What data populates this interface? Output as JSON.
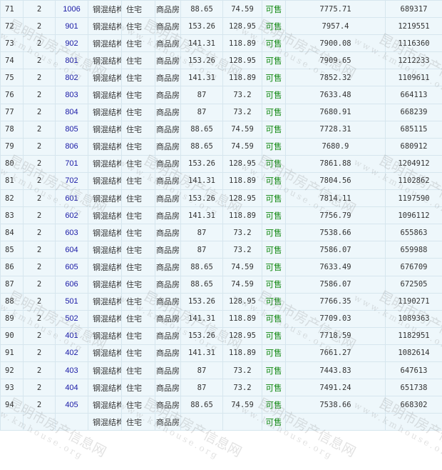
{
  "rows": [
    [
      "71",
      "2",
      "1006",
      "钢混结构",
      "住宅",
      "商品房",
      "88.65",
      "74.59",
      "可售",
      "7775.71",
      "689317"
    ],
    [
      "72",
      "2",
      "901",
      "钢混结构",
      "住宅",
      "商品房",
      "153.26",
      "128.95",
      "可售",
      "7957.4",
      "1219551"
    ],
    [
      "73",
      "2",
      "902",
      "钢混结构",
      "住宅",
      "商品房",
      "141.31",
      "118.89",
      "可售",
      "7900.08",
      "1116360"
    ],
    [
      "74",
      "2",
      "801",
      "钢混结构",
      "住宅",
      "商品房",
      "153.26",
      "128.95",
      "可售",
      "7909.65",
      "1212233"
    ],
    [
      "75",
      "2",
      "802",
      "钢混结构",
      "住宅",
      "商品房",
      "141.31",
      "118.89",
      "可售",
      "7852.32",
      "1109611"
    ],
    [
      "76",
      "2",
      "803",
      "钢混结构",
      "住宅",
      "商品房",
      "87",
      "73.2",
      "可售",
      "7633.48",
      "664113"
    ],
    [
      "77",
      "2",
      "804",
      "钢混结构",
      "住宅",
      "商品房",
      "87",
      "73.2",
      "可售",
      "7680.91",
      "668239"
    ],
    [
      "78",
      "2",
      "805",
      "钢混结构",
      "住宅",
      "商品房",
      "88.65",
      "74.59",
      "可售",
      "7728.31",
      "685115"
    ],
    [
      "79",
      "2",
      "806",
      "钢混结构",
      "住宅",
      "商品房",
      "88.65",
      "74.59",
      "可售",
      "7680.9",
      "680912"
    ],
    [
      "80",
      "2",
      "701",
      "钢混结构",
      "住宅",
      "商品房",
      "153.26",
      "128.95",
      "可售",
      "7861.88",
      "1204912"
    ],
    [
      "81",
      "2",
      "702",
      "钢混结构",
      "住宅",
      "商品房",
      "141.31",
      "118.89",
      "可售",
      "7804.56",
      "1102862"
    ],
    [
      "82",
      "2",
      "601",
      "钢混结构",
      "住宅",
      "商品房",
      "153.26",
      "128.95",
      "可售",
      "7814.11",
      "1197590"
    ],
    [
      "83",
      "2",
      "602",
      "钢混结构",
      "住宅",
      "商品房",
      "141.31",
      "118.89",
      "可售",
      "7756.79",
      "1096112"
    ],
    [
      "84",
      "2",
      "603",
      "钢混结构",
      "住宅",
      "商品房",
      "87",
      "73.2",
      "可售",
      "7538.66",
      "655863"
    ],
    [
      "85",
      "2",
      "604",
      "钢混结构",
      "住宅",
      "商品房",
      "87",
      "73.2",
      "可售",
      "7586.07",
      "659988"
    ],
    [
      "86",
      "2",
      "605",
      "钢混结构",
      "住宅",
      "商品房",
      "88.65",
      "74.59",
      "可售",
      "7633.49",
      "676709"
    ],
    [
      "87",
      "2",
      "606",
      "钢混结构",
      "住宅",
      "商品房",
      "88.65",
      "74.59",
      "可售",
      "7586.07",
      "672505"
    ],
    [
      "88",
      "2",
      "501",
      "钢混结构",
      "住宅",
      "商品房",
      "153.26",
      "128.95",
      "可售",
      "7766.35",
      "1190271"
    ],
    [
      "89",
      "2",
      "502",
      "钢混结构",
      "住宅",
      "商品房",
      "141.31",
      "118.89",
      "可售",
      "7709.03",
      "1089363"
    ],
    [
      "90",
      "2",
      "401",
      "钢混结构",
      "住宅",
      "商品房",
      "153.26",
      "128.95",
      "可售",
      "7718.59",
      "1182951"
    ],
    [
      "91",
      "2",
      "402",
      "钢混结构",
      "住宅",
      "商品房",
      "141.31",
      "118.89",
      "可售",
      "7661.27",
      "1082614"
    ],
    [
      "92",
      "2",
      "403",
      "钢混结构",
      "住宅",
      "商品房",
      "87",
      "73.2",
      "可售",
      "7443.83",
      "647613"
    ],
    [
      "93",
      "2",
      "404",
      "钢混结构",
      "住宅",
      "商品房",
      "87",
      "73.2",
      "可售",
      "7491.24",
      "651738"
    ],
    [
      "94",
      "2",
      "405",
      "钢混结构",
      "住宅",
      "商品房",
      "88.65",
      "74.59",
      "可售",
      "7538.66",
      "668302"
    ],
    [
      "",
      "",
      "",
      "钢混结构",
      "住宅",
      "商品房",
      "",
      "",
      "可售",
      "",
      ""
    ]
  ],
  "watermark": {
    "name": "昆明市房产信息网",
    "url": "www.kmhouse.org"
  },
  "colors": {
    "cell_bg": "#eef7fb",
    "room_link": "#1a1aa6",
    "status": "#118811"
  }
}
